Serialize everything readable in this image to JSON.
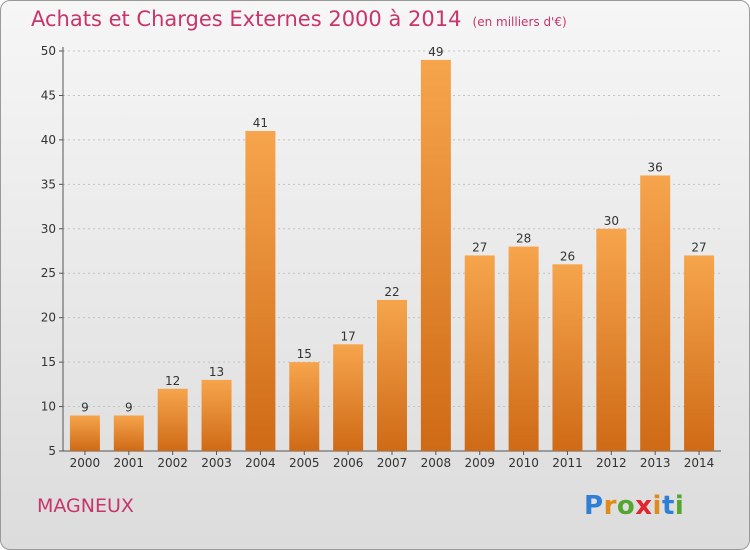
{
  "header": {
    "title": "Achats et Charges Externes 2000 à 2014",
    "unit": "(en milliers d'€)"
  },
  "footer": {
    "commune": "MAGNEUX",
    "logo_letters": [
      "P",
      "r",
      "o",
      "x",
      "i",
      "t",
      "i"
    ],
    "logo_colors": [
      "#2f7fd6",
      "#e08a1b",
      "#55a630",
      "#e0262e",
      "#e08a1b",
      "#2f7fd6",
      "#55a630"
    ]
  },
  "colors": {
    "title": "#c8356b",
    "bar_light": "#f6a54d",
    "bar_dark": "#cf6a16"
  },
  "chart_data": {
    "type": "bar",
    "title": "Achats et Charges Externes 2000 à 2014",
    "subtitle": "(en milliers d'€)",
    "xlabel": "",
    "ylabel": "",
    "categories": [
      "2000",
      "2001",
      "2002",
      "2003",
      "2004",
      "2005",
      "2006",
      "2007",
      "2008",
      "2009",
      "2010",
      "2011",
      "2012",
      "2013",
      "2014"
    ],
    "values": [
      9,
      9,
      12,
      13,
      41,
      15,
      17,
      22,
      49,
      27,
      28,
      26,
      30,
      36,
      27
    ],
    "data_labels": [
      "9",
      "9",
      "12",
      "13",
      "41",
      "15",
      "17",
      "22",
      "49",
      "27",
      "28",
      "26",
      "30",
      "36",
      "27"
    ],
    "y_ticks": [
      "5",
      "10",
      "15",
      "20",
      "25",
      "30",
      "35",
      "40",
      "45",
      "50"
    ],
    "ylim": [
      5,
      50
    ],
    "grid": true,
    "legend": "none"
  }
}
